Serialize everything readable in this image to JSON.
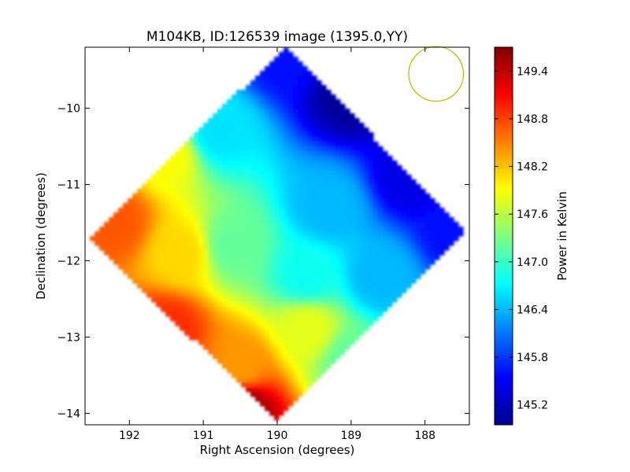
{
  "chart_data": {
    "type": "heatmap",
    "title": "M104KB, ID:126539 image (1395.0,YY)",
    "xlabel": "Right Ascension (degrees)",
    "ylabel": "Declination (degrees)",
    "xlim": [
      192.6,
      187.4
    ],
    "ylim": [
      -14.15,
      -9.2
    ],
    "x_ticks": [
      192,
      191,
      190,
      189,
      188
    ],
    "y_ticks": [
      -10,
      -11,
      -12,
      -13,
      -14
    ],
    "colorbar": {
      "label": "Power in Kelvin",
      "range": [
        144.95,
        149.7
      ],
      "ticks": [
        145.2,
        145.8,
        146.4,
        147.0,
        147.6,
        148.2,
        148.8,
        149.4
      ]
    },
    "region": {
      "shape": "diamond",
      "corners": {
        "top": [
          189.9,
          -9.2
        ],
        "right": [
          187.45,
          -11.6
        ],
        "bottom": [
          190.0,
          -14.1
        ],
        "left": [
          192.55,
          -11.7
        ]
      }
    },
    "field_samples": [
      {
        "ra": 189.9,
        "dec": -9.3,
        "value": 145.6
      },
      {
        "ra": 189.0,
        "dec": -9.8,
        "value": 145.0
      },
      {
        "ra": 188.2,
        "dec": -10.9,
        "value": 145.4
      },
      {
        "ra": 187.6,
        "dec": -11.6,
        "value": 145.6
      },
      {
        "ra": 190.8,
        "dec": -10.3,
        "value": 146.6
      },
      {
        "ra": 189.3,
        "dec": -11.3,
        "value": 146.4
      },
      {
        "ra": 190.6,
        "dec": -11.8,
        "value": 147.2
      },
      {
        "ra": 191.5,
        "dec": -10.6,
        "value": 147.9
      },
      {
        "ra": 188.6,
        "dec": -12.2,
        "value": 146.4
      },
      {
        "ra": 189.6,
        "dec": -12.2,
        "value": 146.8
      },
      {
        "ra": 192.2,
        "dec": -11.5,
        "value": 148.7
      },
      {
        "ra": 191.3,
        "dec": -11.9,
        "value": 148.1
      },
      {
        "ra": 189.6,
        "dec": -12.9,
        "value": 147.8
      },
      {
        "ra": 189.0,
        "dec": -13.3,
        "value": 147.2
      },
      {
        "ra": 191.5,
        "dec": -12.9,
        "value": 148.9
      },
      {
        "ra": 190.5,
        "dec": -13.4,
        "value": 148.4
      },
      {
        "ra": 190.5,
        "dec": -13.9,
        "value": 149.6
      }
    ],
    "beam": {
      "ra": 187.85,
      "dec": -9.55,
      "radius_deg": 0.37,
      "color": "#bfbf00"
    }
  }
}
